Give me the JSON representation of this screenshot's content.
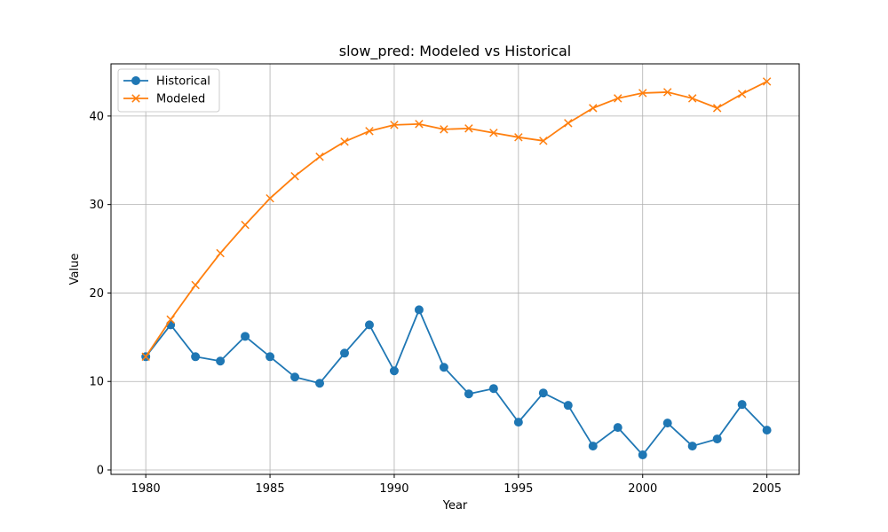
{
  "chart_data": {
    "type": "line",
    "title": "slow_pred: Modeled vs Historical",
    "xlabel": "Year",
    "ylabel": "Value",
    "xlim": [
      1978.6,
      2006.3
    ],
    "ylim": [
      -0.5,
      45.9
    ],
    "xticks": [
      1980,
      1985,
      1990,
      1995,
      2000,
      2005
    ],
    "yticks": [
      0,
      10,
      20,
      30,
      40
    ],
    "grid": true,
    "legend_position": "top-left",
    "x": [
      1980,
      1981,
      1982,
      1983,
      1984,
      1985,
      1986,
      1987,
      1988,
      1989,
      1990,
      1991,
      1992,
      1993,
      1994,
      1995,
      1996,
      1997,
      1998,
      1999,
      2000,
      2001,
      2002,
      2003,
      2004,
      2005
    ],
    "series": [
      {
        "name": "Historical",
        "color": "#1f77b4",
        "marker": "circle",
        "values": [
          12.8,
          16.4,
          12.8,
          12.3,
          15.1,
          12.8,
          10.5,
          9.8,
          13.2,
          16.4,
          11.2,
          18.1,
          11.6,
          8.6,
          9.2,
          5.4,
          8.7,
          7.3,
          2.7,
          4.8,
          1.7,
          5.3,
          2.7,
          3.5,
          7.4,
          4.5
        ]
      },
      {
        "name": "Modeled",
        "color": "#ff7f0e",
        "marker": "x",
        "values": [
          12.8,
          17.0,
          20.9,
          24.5,
          27.7,
          30.7,
          33.2,
          35.4,
          37.1,
          38.3,
          39.0,
          39.1,
          38.5,
          38.6,
          38.1,
          37.6,
          37.2,
          39.2,
          40.9,
          42.0,
          42.6,
          42.7,
          42.0,
          40.9,
          42.5,
          43.9
        ]
      }
    ]
  }
}
